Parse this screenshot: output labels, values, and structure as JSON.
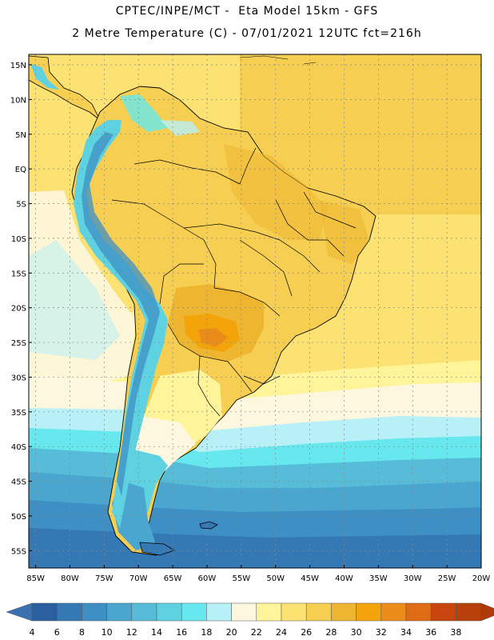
{
  "header": {
    "title_line1": "CPTEC/INPE/MCT -  Eta Model 15km - GFS",
    "title_line2": "2 Metre Temperature (C) - 07/01/2021 12UTC fct=216h"
  },
  "map": {
    "variable": "2 Metre Temperature (C)",
    "lat_labels": [
      "15N",
      "10N",
      "5N",
      "EQ",
      "5S",
      "10S",
      "15S",
      "20S",
      "25S",
      "30S",
      "35S",
      "40S",
      "45S",
      "50S",
      "55S"
    ],
    "lat_values": [
      15,
      10,
      5,
      0,
      -5,
      -10,
      -15,
      -20,
      -25,
      -30,
      -35,
      -40,
      -45,
      -50,
      -55
    ],
    "lon_labels": [
      "85W",
      "80W",
      "75W",
      "70W",
      "65W",
      "60W",
      "55W",
      "50W",
      "45W",
      "40W",
      "35W",
      "30W",
      "25W",
      "20W"
    ],
    "lon_values": [
      -85,
      -80,
      -75,
      -70,
      -65,
      -60,
      -55,
      -50,
      -45,
      -40,
      -35,
      -30,
      -25,
      -20
    ],
    "extent": {
      "lon_min": -86,
      "lon_max": -20,
      "lat_min": -57.5,
      "lat_max": 16.5
    }
  },
  "colorbar": {
    "labels": [
      "4",
      "6",
      "8",
      "10",
      "12",
      "14",
      "16",
      "18",
      "20",
      "22",
      "24",
      "26",
      "28",
      "30",
      "32",
      "34",
      "36",
      "38"
    ],
    "colors": [
      "#2a5fa0",
      "#3478b4",
      "#3e8fc4",
      "#4aa6cf",
      "#56bcd8",
      "#5fd2e2",
      "#66e8ee",
      "#b8f0f8",
      "#fdf7df",
      "#fef49a",
      "#fbe272",
      "#f6cf52",
      "#eeb630",
      "#f3a40b",
      "#eb8c1a",
      "#df6c14",
      "#c9450e",
      "#b8400a"
    ],
    "end_left": "#3a72b0",
    "end_right": "#ad3a08"
  },
  "colors": {
    "ocean_warm": "#fbe272",
    "ocean_cool": "#fdf7df",
    "grid": "#888888",
    "border": "#000000"
  }
}
